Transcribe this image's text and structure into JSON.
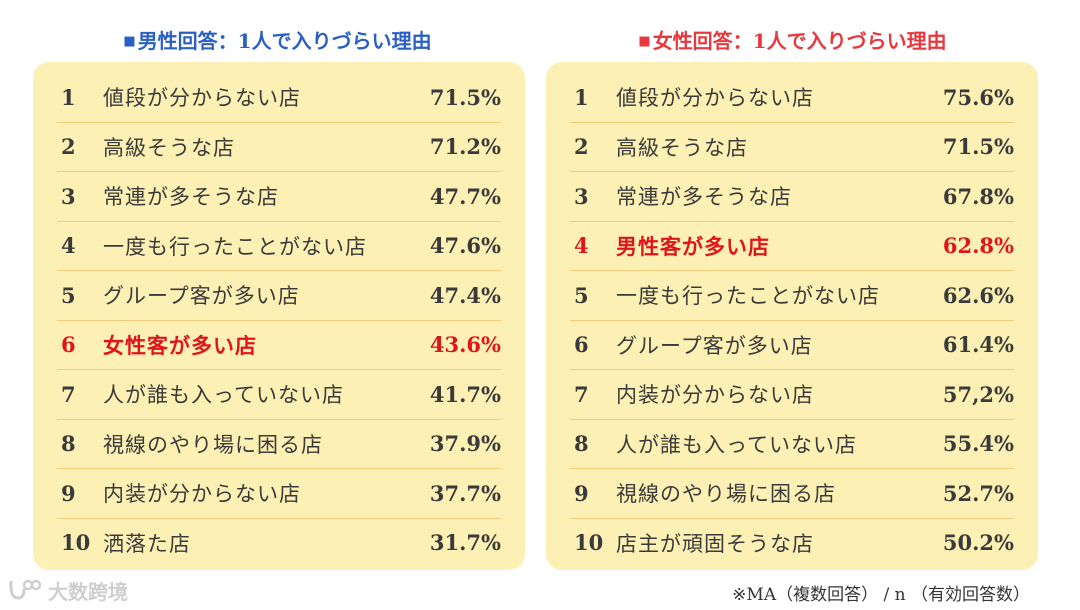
{
  "male": {
    "title": "男性回答：1人で入りづらい理由",
    "marker": "■",
    "rows": [
      {
        "rank": "1",
        "label": "値段が分からない店",
        "pct": "71.5%"
      },
      {
        "rank": "2",
        "label": "高級そうな店",
        "pct": "71.2%"
      },
      {
        "rank": "3",
        "label": "常連が多そうな店",
        "pct": "47.7%"
      },
      {
        "rank": "4",
        "label": "一度も行ったことがない店",
        "pct": "47.6%"
      },
      {
        "rank": "5",
        "label": "グループ客が多い店",
        "pct": "47.4%"
      },
      {
        "rank": "6",
        "label": "女性客が多い店",
        "pct": "43.6%"
      },
      {
        "rank": "7",
        "label": "人が誰も入っていない店",
        "pct": "41.7%"
      },
      {
        "rank": "8",
        "label": "視線のやり場に困る店",
        "pct": "37.9%"
      },
      {
        "rank": "9",
        "label": "内装が分からない店",
        "pct": "37.7%"
      },
      {
        "rank": "10",
        "label": "洒落た店",
        "pct": "31.7%"
      }
    ]
  },
  "female": {
    "title": "女性回答：1人で入りづらい理由",
    "marker": "■",
    "rows": [
      {
        "rank": "1",
        "label": "値段が分からない店",
        "pct": "75.6%"
      },
      {
        "rank": "2",
        "label": "高級そうな店",
        "pct": "71.5%"
      },
      {
        "rank": "3",
        "label": "常連が多そうな店",
        "pct": "67.8%"
      },
      {
        "rank": "4",
        "label": "男性客が多い店",
        "pct": "62.8%"
      },
      {
        "rank": "5",
        "label": "一度も行ったことがない店",
        "pct": "62.6%"
      },
      {
        "rank": "6",
        "label": "グループ客が多い店",
        "pct": "61.4%"
      },
      {
        "rank": "7",
        "label": "内装が分からない店",
        "pct": "57,2%"
      },
      {
        "rank": "8",
        "label": "人が誰も入っていない店",
        "pct": "55.4%"
      },
      {
        "rank": "9",
        "label": "視線のやり場に困る店",
        "pct": "52.7%"
      },
      {
        "rank": "10",
        "label": "店主が頑固そうな店",
        "pct": "50.2%"
      }
    ]
  },
  "highlight": {
    "male_row_index": 5,
    "female_row_index": 3,
    "color": "#e0151b"
  },
  "colors": {
    "male_title": "#2a5fc7",
    "female_title": "#e8383d",
    "panel_bg": "#fdf0b4",
    "divider": "#f3cc7a"
  },
  "watermark": {
    "text": "大数跨境",
    "icon": "brand-logo-icon"
  },
  "footnote": "※MA（複数回答） / n （有効回答数）"
}
